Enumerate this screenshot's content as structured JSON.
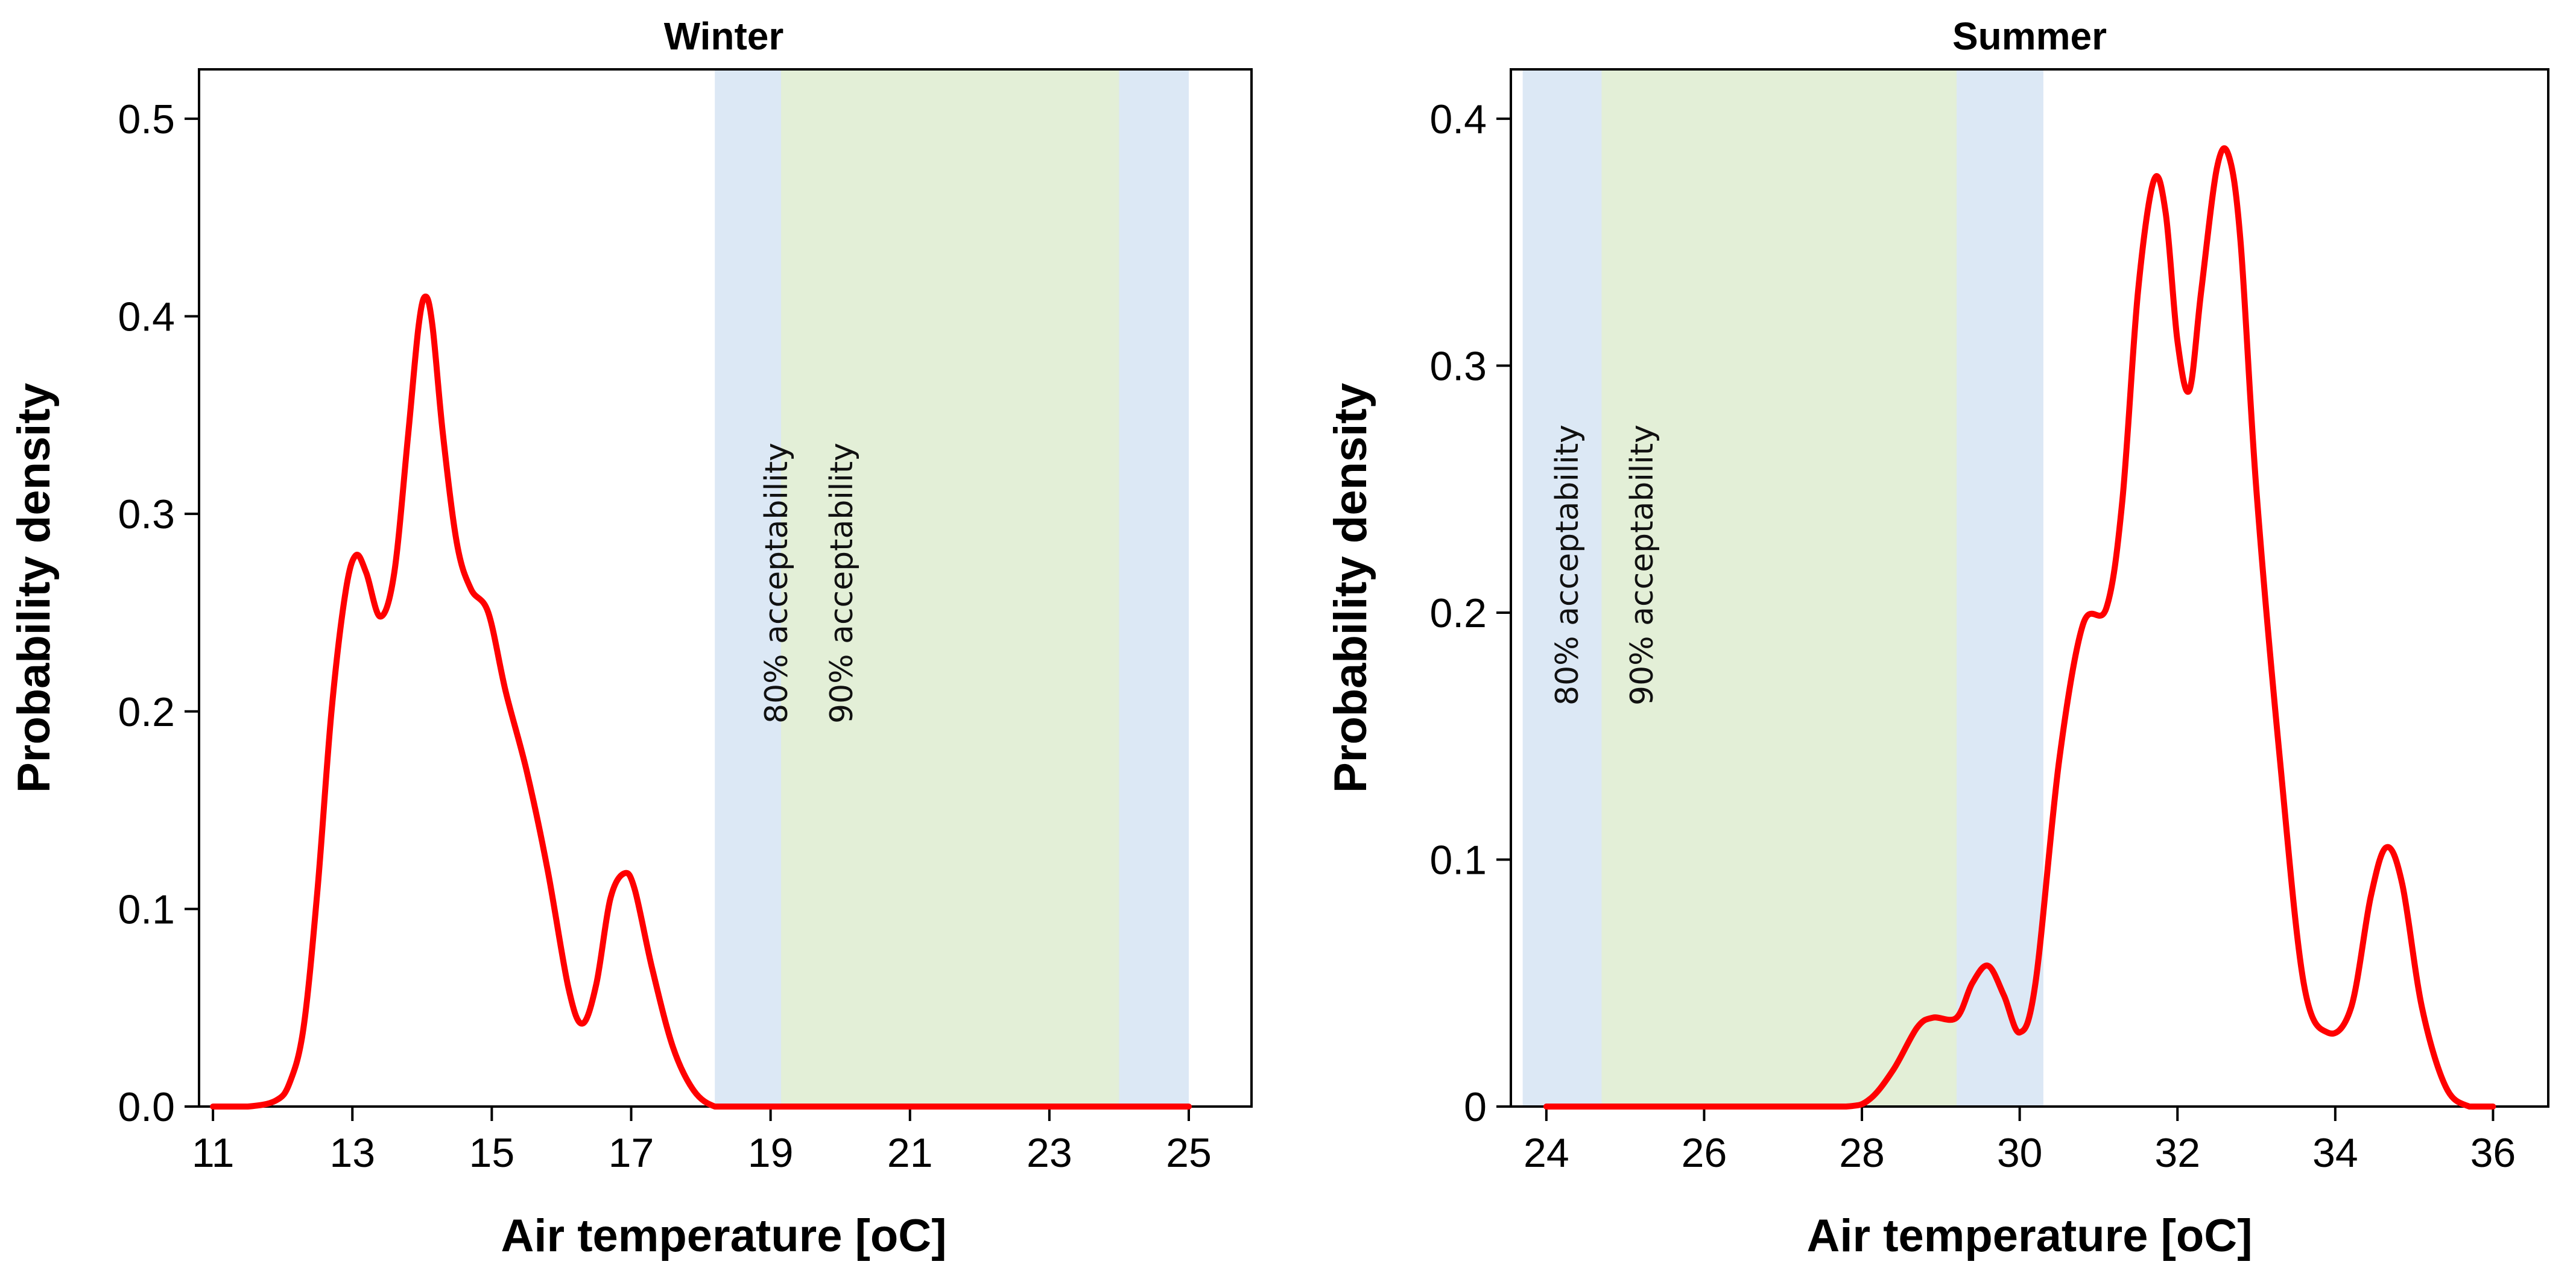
{
  "chart_data": [
    {
      "type": "line",
      "title": "Winter",
      "xlabel": "Air temperature [oC]",
      "ylabel": "Probability density",
      "xlim": [
        10.8,
        25.9
      ],
      "ylim": [
        0,
        0.525
      ],
      "xticks": [
        11,
        13,
        15,
        17,
        19,
        21,
        23,
        25
      ],
      "xtick_labels": [
        "11",
        "13",
        "15",
        "17",
        "19",
        "21",
        "23",
        "25"
      ],
      "yticks": [
        0,
        0.1,
        0.2,
        0.3,
        0.4,
        0.5
      ],
      "ytick_labels": [
        "0.0",
        "0.1",
        "0.2",
        "0.3",
        "0.4",
        "0.5"
      ],
      "bands": [
        {
          "name": "80% acceptability",
          "x0": 18.2,
          "x1": 25.0,
          "color": "#dce8f5"
        },
        {
          "name": "90% acceptability",
          "x0": 19.15,
          "x1": 24.0,
          "color": "#e3efd7"
        }
      ],
      "band_labels": [
        "80% acceptability",
        "90% acceptability"
      ],
      "series": [
        {
          "name": "density",
          "color": "#ff0000",
          "x": [
            11.0,
            11.5,
            11.9,
            12.1,
            12.3,
            12.5,
            12.7,
            12.9,
            13.05,
            13.2,
            13.4,
            13.6,
            13.8,
            13.95,
            14.05,
            14.15,
            14.3,
            14.5,
            14.7,
            14.95,
            15.2,
            15.5,
            15.8,
            16.1,
            16.3,
            16.5,
            16.7,
            16.9,
            17.05,
            17.3,
            17.6,
            17.9,
            18.2,
            18.5,
            19.0,
            20.0,
            21.0,
            22.0,
            23.0,
            24.0,
            25.0
          ],
          "y": [
            0.0,
            0.0,
            0.003,
            0.012,
            0.04,
            0.11,
            0.2,
            0.26,
            0.279,
            0.27,
            0.248,
            0.27,
            0.34,
            0.395,
            0.41,
            0.395,
            0.34,
            0.285,
            0.262,
            0.25,
            0.21,
            0.17,
            0.12,
            0.06,
            0.042,
            0.062,
            0.105,
            0.118,
            0.11,
            0.07,
            0.03,
            0.008,
            0.0,
            0.0,
            0.0,
            0.0,
            0.0,
            0.0,
            0.0,
            0.0,
            0.0
          ]
        }
      ]
    },
    {
      "type": "line",
      "title": "Summer",
      "xlabel": "Air temperature [oC]",
      "ylabel": "Probability density",
      "xlim": [
        23.55,
        36.7
      ],
      "ylim": [
        0,
        0.42
      ],
      "xticks": [
        24,
        26,
        28,
        30,
        32,
        34,
        36
      ],
      "xtick_labels": [
        "24",
        "26",
        "28",
        "30",
        "32",
        "34",
        "36"
      ],
      "yticks": [
        0,
        0.1,
        0.2,
        0.3,
        0.4
      ],
      "ytick_labels": [
        "0",
        "0.1",
        "0.2",
        "0.3",
        "0.4"
      ],
      "bands": [
        {
          "name": "80% acceptability",
          "x0": 23.7,
          "x1": 30.3,
          "color": "#dce8f5"
        },
        {
          "name": "90% acceptability",
          "x0": 24.7,
          "x1": 29.2,
          "color": "#e3efd7"
        }
      ],
      "band_labels": [
        "80% acceptability",
        "90% acceptability"
      ],
      "series": [
        {
          "name": "density",
          "color": "#ff0000",
          "x": [
            24.0,
            25.0,
            26.0,
            27.0,
            27.8,
            28.1,
            28.4,
            28.7,
            28.9,
            29.2,
            29.4,
            29.6,
            29.8,
            30.0,
            30.2,
            30.5,
            30.8,
            31.1,
            31.3,
            31.5,
            31.7,
            31.85,
            32.0,
            32.15,
            32.3,
            32.5,
            32.65,
            32.8,
            33.0,
            33.3,
            33.6,
            33.9,
            34.2,
            34.45,
            34.65,
            34.85,
            35.1,
            35.4,
            35.7,
            36.0
          ],
          "y": [
            0.0,
            0.0,
            0.0,
            0.0,
            0.0,
            0.003,
            0.015,
            0.032,
            0.036,
            0.036,
            0.05,
            0.057,
            0.045,
            0.03,
            0.05,
            0.14,
            0.195,
            0.202,
            0.245,
            0.33,
            0.375,
            0.362,
            0.31,
            0.29,
            0.33,
            0.38,
            0.385,
            0.35,
            0.25,
            0.14,
            0.05,
            0.03,
            0.04,
            0.085,
            0.105,
            0.09,
            0.04,
            0.008,
            0.0,
            0.0
          ]
        }
      ]
    }
  ]
}
